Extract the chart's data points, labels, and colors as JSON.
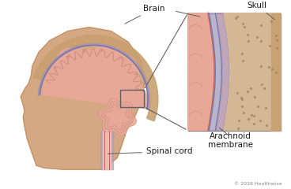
{
  "bg_color": "#ffffff",
  "labels": {
    "brain": "Brain",
    "skull": "Skull",
    "arachnoid": "Arachnoid\nmembrane",
    "spinal_cord": "Spinal cord",
    "copyright": "© 2018 Healthwise"
  },
  "colors": {
    "bg_color": "#ffffff",
    "face_skin": "#d4a882",
    "face_outline": "#c49060",
    "brain_outer": "#c8857a",
    "brain_inner": "#e8a898",
    "skull_outer": "#d4b896",
    "skull_bone": "#c8a070",
    "dura": "#b090a8",
    "arachnoid_layer": "#a8a0c0",
    "arachnoid_line": "#6878b0",
    "pia": "#c86060",
    "spinal_cord_color": "#e8c0b0",
    "box_line": "#606060",
    "annotation_line": "#606060",
    "text_color": "#1a1a1a"
  }
}
